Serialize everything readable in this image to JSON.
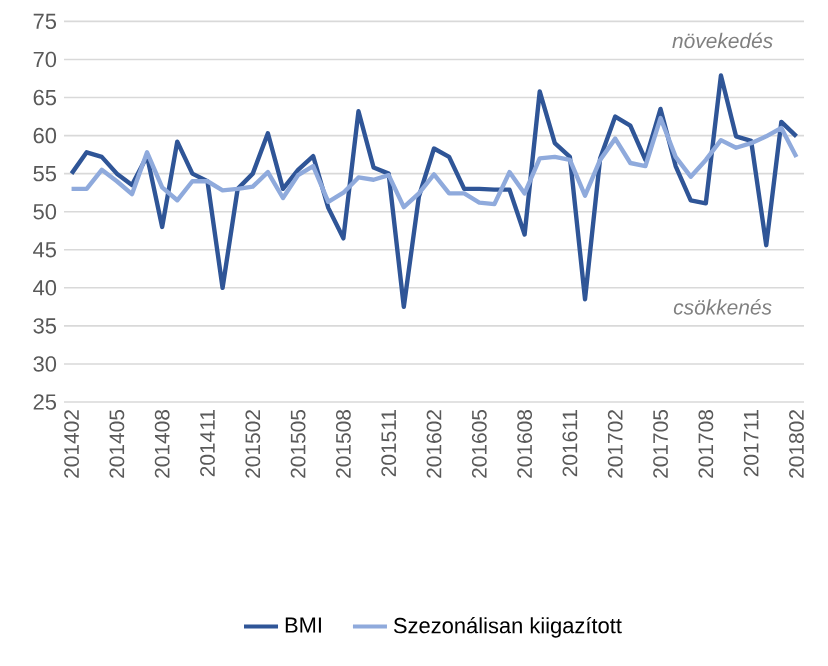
{
  "chart_data": {
    "type": "line",
    "categories": [
      "201402",
      null,
      null,
      "201405",
      null,
      null,
      "201408",
      null,
      null,
      "201411",
      null,
      null,
      "201502",
      null,
      null,
      "201505",
      null,
      null,
      "201508",
      null,
      null,
      "201511",
      null,
      null,
      "201602",
      null,
      null,
      "201605",
      null,
      null,
      "201608",
      null,
      null,
      "201611",
      null,
      null,
      "201702",
      null,
      null,
      "201705",
      null,
      null,
      "201708",
      null,
      null,
      "201711",
      null,
      null,
      "201802"
    ],
    "series": [
      {
        "name": "BMI",
        "color": "#2f5597",
        "values": [
          55,
          57.8,
          57.2,
          55,
          53.5,
          57.3,
          48,
          59.2,
          55,
          54,
          40,
          53,
          55,
          60.3,
          53,
          55.5,
          57.3,
          50.5,
          46.5,
          63.2,
          55.8,
          55,
          37.5,
          52,
          58.3,
          57.2,
          53,
          53,
          52.9,
          52.9,
          47,
          65.8,
          59,
          57.2,
          38.5,
          57,
          62.5,
          61.3,
          56.8,
          63.5,
          56,
          51.5,
          51.1,
          67.9,
          59.9,
          59.3,
          45.6,
          61.8,
          59.9
        ]
      },
      {
        "name": "Szezonálisan kiigazított",
        "color": "#8faadc",
        "values": [
          53,
          53,
          55.5,
          54,
          52.3,
          57.8,
          53.2,
          51.5,
          54,
          54,
          52.8,
          53,
          53.3,
          55.2,
          51.8,
          54.8,
          56,
          51.3,
          52.5,
          54.5,
          54.2,
          54.8,
          50.6,
          52.4,
          54.9,
          52.4,
          52.4,
          51.2,
          51,
          55.2,
          52.4,
          57,
          57.2,
          56.8,
          52.1,
          56.8,
          59.6,
          56.4,
          56,
          62.3,
          57.2,
          54.6,
          56.8,
          59.4,
          58.4,
          59,
          59.9,
          61,
          57.2
        ]
      }
    ],
    "ylim": [
      25,
      75
    ],
    "yticks": [
      25,
      30,
      35,
      40,
      45,
      50,
      55,
      60,
      65,
      70,
      75
    ],
    "grid": "y",
    "legend": "bottom",
    "marker": "none",
    "line_style": "solid",
    "annotations": [
      "növekedés",
      "csökkenés"
    ]
  }
}
